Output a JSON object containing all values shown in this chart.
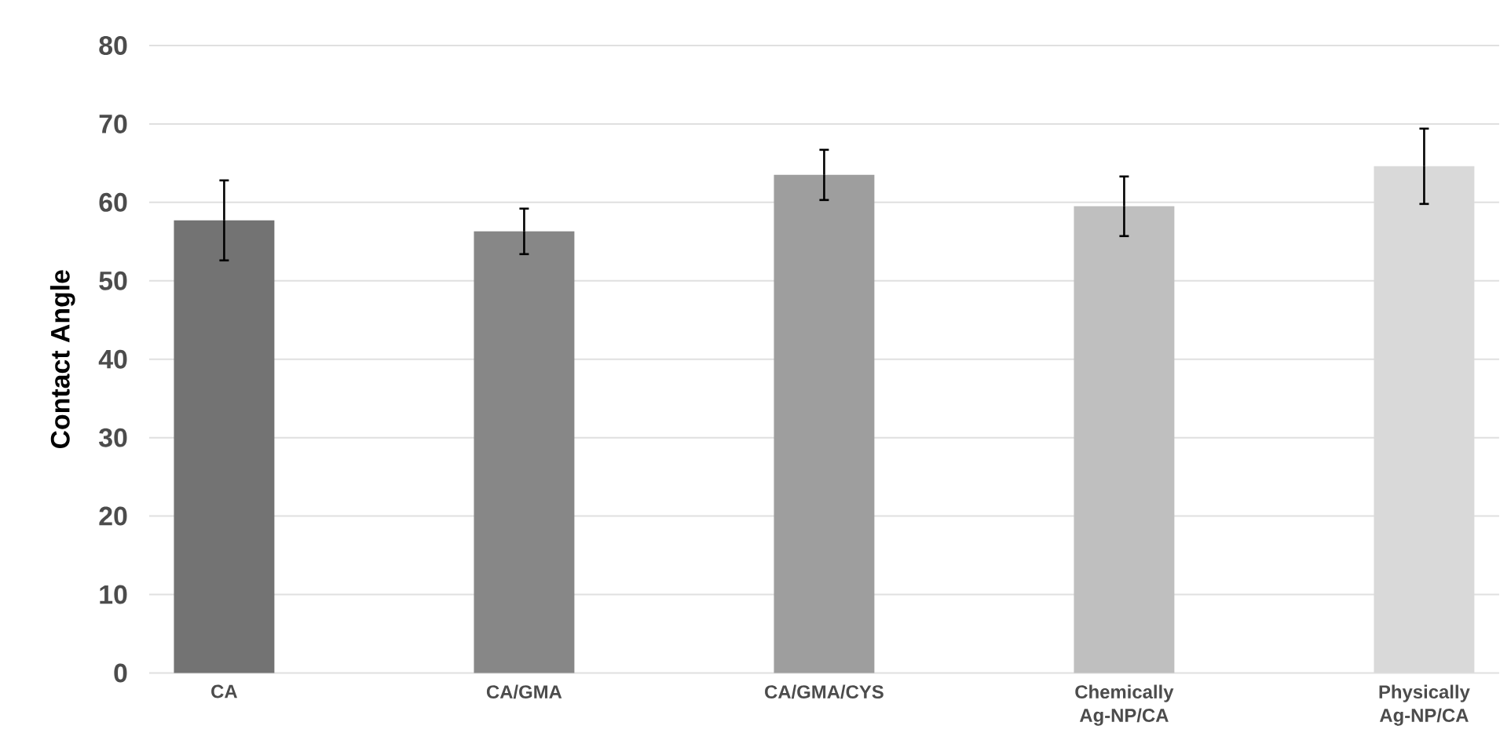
{
  "chart_data": {
    "type": "bar",
    "ylabel": "Contact Angle",
    "categories": [
      "CA",
      "CA/GMA",
      "CA/GMA/CYS",
      "Chemically Ag-NP/CA",
      "Physically Ag-NP/CA"
    ],
    "values": [
      57.7,
      56.3,
      63.5,
      59.5,
      64.6
    ],
    "errors": [
      5.1,
      2.9,
      3.2,
      3.8,
      4.8
    ],
    "colors": [
      "#737373",
      "#878787",
      "#9e9e9e",
      "#bfbfbf",
      "#d9d9d9"
    ],
    "ylim": [
      0,
      80
    ],
    "yticks": [
      0,
      10,
      20,
      30,
      40,
      50,
      60,
      70,
      80
    ],
    "grid": "y"
  }
}
